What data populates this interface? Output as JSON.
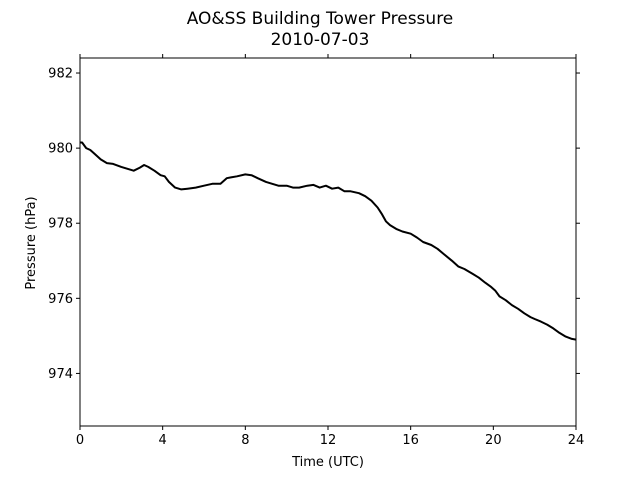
{
  "chart_data": {
    "type": "line",
    "title": "AO&SS Building Tower Pressure",
    "subtitle": "2010-07-03",
    "xlabel": "Time (UTC)",
    "ylabel": "Pressure (hPa)",
    "xlim": [
      0,
      24
    ],
    "ylim": [
      972.6,
      982.4
    ],
    "xticks": [
      0,
      4,
      8,
      12,
      16,
      20,
      24
    ],
    "yticks": [
      974,
      976,
      978,
      980,
      982
    ],
    "grid": false,
    "legend": "none",
    "series": [
      {
        "color": "#000000",
        "x": [
          0,
          0.1,
          0.3,
          0.5,
          0.7,
          1.0,
          1.3,
          1.6,
          2.0,
          2.3,
          2.6,
          2.9,
          3.1,
          3.3,
          3.6,
          3.9,
          4.1,
          4.3,
          4.6,
          4.9,
          5.2,
          5.6,
          6.0,
          6.4,
          6.8,
          7.1,
          7.3,
          7.6,
          8.0,
          8.3,
          8.6,
          9.0,
          9.3,
          9.6,
          10.0,
          10.3,
          10.6,
          11.0,
          11.3,
          11.6,
          11.9,
          12.2,
          12.5,
          12.8,
          13.1,
          13.5,
          13.8,
          14.1,
          14.4,
          14.6,
          14.8,
          15.0,
          15.3,
          15.6,
          16.0,
          16.3,
          16.6,
          17.0,
          17.3,
          17.6,
          18.0,
          18.3,
          18.6,
          19.0,
          19.3,
          19.6,
          19.9,
          20.1,
          20.3,
          20.6,
          20.9,
          21.2,
          21.5,
          21.8,
          22.0,
          22.3,
          22.6,
          22.9,
          23.2,
          23.5,
          23.8,
          24.0
        ],
        "y": [
          980.15,
          980.15,
          980.0,
          979.95,
          979.85,
          979.7,
          979.6,
          979.58,
          979.5,
          979.45,
          979.4,
          979.48,
          979.55,
          979.5,
          979.4,
          979.28,
          979.25,
          979.1,
          978.95,
          978.9,
          978.92,
          978.95,
          979.0,
          979.05,
          979.05,
          979.2,
          979.22,
          979.25,
          979.3,
          979.28,
          979.2,
          979.1,
          979.05,
          979.0,
          979.0,
          978.95,
          978.95,
          979.0,
          979.02,
          978.95,
          979.0,
          978.92,
          978.95,
          978.85,
          978.85,
          978.8,
          978.72,
          978.6,
          978.42,
          978.25,
          978.05,
          977.95,
          977.85,
          977.78,
          977.72,
          977.62,
          977.5,
          977.42,
          977.32,
          977.18,
          977.0,
          976.85,
          976.78,
          976.65,
          976.55,
          976.42,
          976.3,
          976.2,
          976.05,
          975.95,
          975.82,
          975.72,
          975.6,
          975.5,
          975.45,
          975.38,
          975.3,
          975.2,
          975.08,
          974.98,
          974.92,
          974.9
        ]
      }
    ]
  }
}
